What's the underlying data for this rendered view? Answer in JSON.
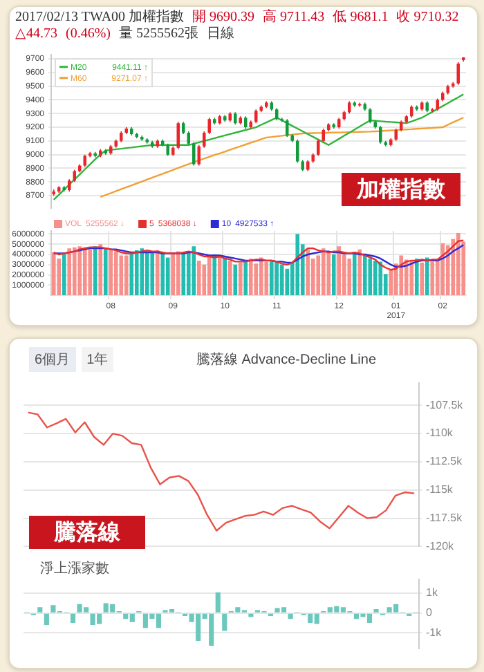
{
  "chart_data": [
    {
      "type": "candlestick",
      "title": "2017/02/13 TWA00 加權指數",
      "categories": [
        null,
        null,
        null,
        null,
        null,
        null,
        null,
        null,
        null,
        null,
        null,
        null,
        null,
        null,
        null,
        null,
        null,
        null,
        null,
        null,
        null,
        null,
        null,
        null,
        null,
        null,
        null,
        null,
        null,
        null,
        null,
        null,
        null,
        null,
        null,
        null,
        null,
        null,
        null,
        null,
        null,
        null,
        null,
        null,
        null,
        null,
        null,
        null,
        null,
        null,
        null,
        null,
        null,
        null,
        null,
        null,
        null,
        null,
        null,
        null,
        null,
        null,
        null,
        null,
        null,
        null,
        null,
        null,
        null,
        null,
        null,
        null,
        null,
        null,
        null,
        null,
        null,
        null,
        null,
        null
      ],
      "ohlc": [
        [
          8710,
          8745,
          8700,
          8730
        ],
        [
          8730,
          8770,
          8720,
          8760
        ],
        [
          8760,
          8770,
          8730,
          8740
        ],
        [
          8740,
          8820,
          8730,
          8810
        ],
        [
          8810,
          8890,
          8800,
          8880
        ],
        [
          8880,
          8930,
          8870,
          8920
        ],
        [
          8920,
          9000,
          8910,
          8990
        ],
        [
          8990,
          9020,
          8980,
          9010
        ],
        [
          9010,
          9020,
          8980,
          8990
        ],
        [
          8990,
          9040,
          8980,
          9030
        ],
        [
          9030,
          9040,
          9000,
          9010
        ],
        [
          9010,
          9070,
          9000,
          9060
        ],
        [
          9060,
          9110,
          9050,
          9100
        ],
        [
          9100,
          9170,
          9090,
          9160
        ],
        [
          9160,
          9200,
          9150,
          9190
        ],
        [
          9190,
          9200,
          9140,
          9150
        ],
        [
          9150,
          9160,
          9120,
          9130
        ],
        [
          9130,
          9140,
          9100,
          9110
        ],
        [
          9110,
          9120,
          9080,
          9090
        ],
        [
          9090,
          9100,
          9050,
          9060
        ],
        [
          9060,
          9110,
          9050,
          9100
        ],
        [
          9100,
          9110,
          9060,
          9070
        ],
        [
          9070,
          9080,
          8990,
          9000
        ],
        [
          9000,
          9060,
          8990,
          9050
        ],
        [
          9050,
          9240,
          9040,
          9230
        ],
        [
          9230,
          9240,
          9150,
          9160
        ],
        [
          9160,
          9170,
          9070,
          9080
        ],
        [
          9080,
          9090,
          8920,
          8930
        ],
        [
          8930,
          9070,
          8920,
          9060
        ],
        [
          9060,
          9170,
          9050,
          9160
        ],
        [
          9160,
          9270,
          9150,
          9260
        ],
        [
          9260,
          9270,
          9220,
          9230
        ],
        [
          9230,
          9290,
          9220,
          9280
        ],
        [
          9280,
          9290,
          9240,
          9250
        ],
        [
          9250,
          9310,
          9240,
          9300
        ],
        [
          9300,
          9310,
          9220,
          9230
        ],
        [
          9230,
          9280,
          9220,
          9270
        ],
        [
          9270,
          9280,
          9190,
          9200
        ],
        [
          9200,
          9250,
          9190,
          9240
        ],
        [
          9240,
          9330,
          9230,
          9320
        ],
        [
          9320,
          9360,
          9310,
          9350
        ],
        [
          9350,
          9390,
          9340,
          9380
        ],
        [
          9380,
          9390,
          9320,
          9330
        ],
        [
          9330,
          9340,
          9250,
          9260
        ],
        [
          9260,
          9270,
          9240,
          9250
        ],
        [
          9250,
          9260,
          9130,
          9140
        ],
        [
          9140,
          9150,
          9090,
          9100
        ],
        [
          9100,
          9110,
          8940,
          8950
        ],
        [
          8950,
          8960,
          8880,
          8890
        ],
        [
          8890,
          8960,
          8880,
          8950
        ],
        [
          8950,
          9010,
          8940,
          9000
        ],
        [
          9000,
          9110,
          8990,
          9100
        ],
        [
          9100,
          9190,
          9090,
          9180
        ],
        [
          9180,
          9230,
          9170,
          9220
        ],
        [
          9220,
          9230,
          9190,
          9200
        ],
        [
          9200,
          9270,
          9190,
          9260
        ],
        [
          9260,
          9320,
          9250,
          9310
        ],
        [
          9310,
          9390,
          9300,
          9380
        ],
        [
          9380,
          9390,
          9350,
          9360
        ],
        [
          9360,
          9380,
          9350,
          9370
        ],
        [
          9370,
          9380,
          9320,
          9330
        ],
        [
          9330,
          9340,
          9230,
          9240
        ],
        [
          9240,
          9250,
          9190,
          9200
        ],
        [
          9200,
          9210,
          9080,
          9090
        ],
        [
          9090,
          9100,
          9060,
          9070
        ],
        [
          9070,
          9120,
          9060,
          9110
        ],
        [
          9110,
          9190,
          9100,
          9180
        ],
        [
          9180,
          9250,
          9170,
          9240
        ],
        [
          9240,
          9290,
          9230,
          9280
        ],
        [
          9280,
          9360,
          9270,
          9350
        ],
        [
          9350,
          9360,
          9320,
          9330
        ],
        [
          9330,
          9390,
          9320,
          9380
        ],
        [
          9380,
          9390,
          9310,
          9320
        ],
        [
          9320,
          9340,
          9310,
          9330
        ],
        [
          9330,
          9410,
          9320,
          9400
        ],
        [
          9400,
          9460,
          9390,
          9450
        ],
        [
          9450,
          9510,
          9440,
          9500
        ],
        [
          9500,
          9530,
          9490,
          9520
        ],
        [
          9520,
          9675,
          9510,
          9665.59
        ],
        [
          9690.39,
          9711.43,
          9681.1,
          9710.32
        ]
      ],
      "series": [
        {
          "type": "line",
          "name": "M20",
          "color": "#2fb53a",
          "values": [
            8670,
            8707,
            8744,
            8781,
            8818,
            8855,
            8892,
            8929,
            8966,
            9000,
            9030,
            9034,
            9039,
            9043,
            9048,
            9052,
            9057,
            9061,
            9066,
            9070,
            9070,
            9070,
            9070,
            9070,
            9070,
            9070,
            9070,
            9080,
            9090,
            9100,
            9110,
            9120,
            9130,
            9140,
            9150,
            9160,
            9170,
            9180,
            9190,
            9200,
            9218,
            9235,
            9253,
            9270,
            9250,
            9230,
            9210,
            9190,
            9170,
            9150,
            9130,
            9110,
            9090,
            9070,
            9093,
            9115,
            9138,
            9160,
            9183,
            9205,
            9228,
            9250,
            9247,
            9244,
            9241,
            9239,
            9236,
            9233,
            9230,
            9243,
            9257,
            9270,
            9291,
            9312,
            9334,
            9355,
            9376,
            9398,
            9419,
            9441
          ]
        },
        {
          "type": "line",
          "name": "M60",
          "color": "#f0a035",
          "values": [
            null,
            null,
            null,
            null,
            null,
            null,
            null,
            null,
            null,
            8690,
            8704,
            8718,
            8733,
            8747,
            8761,
            8775,
            8789,
            8803,
            8818,
            8832,
            8846,
            8860,
            8874,
            8888,
            8903,
            8917,
            8931,
            8945,
            8958,
            8971,
            8984,
            8997,
            9009,
            9022,
            9035,
            9048,
            9061,
            9074,
            9087,
            9099,
            9112,
            9125,
            9129,
            9134,
            9138,
            9142,
            9146,
            9151,
            9155,
            9156,
            9157,
            9158,
            9159,
            9160,
            9161,
            9162,
            9163,
            9164,
            9165,
            9166,
            9167,
            9168,
            9170,
            9172,
            9175,
            9177,
            9179,
            9182,
            9184,
            9186,
            9189,
            9191,
            9193,
            9195,
            9198,
            9200,
            9218,
            9236,
            9253,
            9271
          ]
        }
      ],
      "ylim": [
        8610,
        9730
      ],
      "yticks": [
        8700,
        8800,
        8900,
        9000,
        9100,
        9200,
        9300,
        9400,
        9500,
        9600,
        9700
      ],
      "grid": "y",
      "legend": "top left",
      "annotations": [
        "開 9690.39",
        "高 9711.43",
        "低 9681.1",
        "收 9710.32",
        "△44.73",
        "(0.46%)",
        "量 5255562張",
        "日線",
        "加權指數",
        "9441.11 ↑",
        "9271.07 ↑"
      ]
    },
    {
      "type": "bar",
      "categories": [
        null,
        null,
        null,
        null,
        null,
        null,
        null,
        null,
        null,
        null,
        null,
        "08",
        null,
        null,
        null,
        null,
        null,
        null,
        null,
        null,
        null,
        null,
        null,
        "09",
        null,
        null,
        null,
        null,
        null,
        null,
        null,
        null,
        null,
        "10",
        null,
        null,
        null,
        null,
        null,
        null,
        null,
        null,
        null,
        "11",
        null,
        null,
        null,
        null,
        null,
        null,
        null,
        null,
        null,
        null,
        null,
        "12",
        null,
        null,
        null,
        null,
        null,
        null,
        null,
        null,
        null,
        null,
        "01\n2017",
        null,
        null,
        null,
        null,
        null,
        null,
        null,
        null,
        "02",
        null,
        null,
        null,
        null
      ],
      "series": [
        {
          "type": "bar",
          "name": "VOL",
          "values": [
            4200000,
            3600000,
            4000000,
            4600000,
            4700000,
            4800000,
            4700000,
            4500000,
            4800000,
            5000000,
            4600000,
            4400000,
            4300000,
            3900000,
            3900000,
            4200000,
            4400000,
            4600000,
            4300000,
            4200000,
            4400000,
            4100000,
            3700000,
            4000000,
            4300000,
            4200000,
            4300000,
            4800000,
            3400000,
            3000000,
            3900000,
            4000000,
            3900000,
            3700000,
            3400000,
            3000000,
            3200000,
            3300000,
            3600000,
            3100000,
            3700000,
            3300000,
            3400000,
            3300000,
            3000000,
            2600000,
            3200000,
            6000000,
            5000000,
            4500000,
            3600000,
            3900000,
            4600000,
            4300000,
            4000000,
            4800000,
            4000000,
            3600000,
            4100000,
            4500000,
            4000000,
            3600000,
            3400000,
            3300000,
            2100000,
            2500000,
            3100000,
            3900000,
            3500000,
            3400000,
            3600000,
            3200000,
            3700000,
            3300000,
            3600000,
            5100000,
            4900000,
            5500000,
            6100000,
            5255562
          ],
          "colors": [
            "#f78f8a",
            "#f78f8a",
            "#22bdb0",
            "#f78f8a",
            "#f78f8a",
            "#f78f8a",
            "#f78f8a",
            "#f78f8a",
            "#22bdb0",
            "#f78f8a",
            "#22bdb0",
            "#f78f8a",
            "#f78f8a",
            "#f78f8a",
            "#f78f8a",
            "#22bdb0",
            "#22bdb0",
            "#22bdb0",
            "#22bdb0",
            "#22bdb0",
            "#f78f8a",
            "#22bdb0",
            "#22bdb0",
            "#f78f8a",
            "#f78f8a",
            "#22bdb0",
            "#22bdb0",
            "#22bdb0",
            "#f78f8a",
            "#f78f8a",
            "#f78f8a",
            "#22bdb0",
            "#f78f8a",
            "#22bdb0",
            "#f78f8a",
            "#22bdb0",
            "#f78f8a",
            "#22bdb0",
            "#f78f8a",
            "#f78f8a",
            "#f78f8a",
            "#f78f8a",
            "#22bdb0",
            "#22bdb0",
            "#22bdb0",
            "#22bdb0",
            "#22bdb0",
            "#22bdb0",
            "#22bdb0",
            "#f78f8a",
            "#f78f8a",
            "#f78f8a",
            "#f78f8a",
            "#f78f8a",
            "#22bdb0",
            "#f78f8a",
            "#f78f8a",
            "#f78f8a",
            "#22bdb0",
            "#f78f8a",
            "#22bdb0",
            "#22bdb0",
            "#22bdb0",
            "#22bdb0",
            "#22bdb0",
            "#f78f8a",
            "#f78f8a",
            "#f78f8a",
            "#f78f8a",
            "#f78f8a",
            "#22bdb0",
            "#f78f8a",
            "#22bdb0",
            "#f78f8a",
            "#f78f8a",
            "#f78f8a",
            "#f78f8a",
            "#f78f8a",
            "#f78f8a",
            "#f78f8a"
          ]
        },
        {
          "type": "line",
          "name": "5",
          "color": "#e53030",
          "values": [
            4200000,
            4000000,
            4100000,
            4200000,
            4300000,
            4500000,
            4600000,
            4700000,
            4700000,
            4700000,
            4600000,
            4500000,
            4400000,
            4200000,
            4100000,
            4100000,
            4200000,
            4300000,
            4400000,
            4300000,
            4300000,
            4200000,
            4100000,
            4100000,
            4100000,
            4200000,
            4300000,
            4200000,
            4000000,
            3800000,
            3800000,
            3700000,
            3800000,
            3600000,
            3500000,
            3300000,
            3300000,
            3300000,
            3400000,
            3500000,
            3500000,
            3400000,
            3400000,
            3300000,
            3100000,
            3000000,
            3200000,
            3700000,
            4200000,
            4600000,
            4600000,
            4400000,
            4300000,
            4200000,
            4300000,
            4300000,
            4200000,
            4100000,
            4200000,
            4100000,
            3900000,
            3700000,
            3500000,
            3000000,
            2700000,
            2500000,
            2600000,
            3000000,
            3300000,
            3400000,
            3400000,
            3500000,
            3400000,
            3500000,
            3500000,
            3900000,
            4300000,
            4800000,
            5300000,
            5368038
          ]
        },
        {
          "type": "line",
          "name": "10",
          "color": "#2b2bd6",
          "values": [
            4100000,
            4100000,
            4100000,
            4200000,
            4300000,
            4400000,
            4500000,
            4600000,
            4600000,
            4600000,
            4600000,
            4500000,
            4500000,
            4400000,
            4300000,
            4200000,
            4200000,
            4200000,
            4200000,
            4200000,
            4200000,
            4100000,
            4100000,
            4100000,
            4100000,
            4100000,
            4200000,
            4200000,
            4100000,
            4000000,
            3900000,
            3900000,
            3900000,
            3800000,
            3700000,
            3600000,
            3500000,
            3400000,
            3400000,
            3400000,
            3400000,
            3400000,
            3400000,
            3300000,
            3300000,
            3200000,
            3200000,
            3500000,
            3800000,
            4000000,
            4100000,
            4200000,
            4300000,
            4300000,
            4200000,
            4200000,
            4100000,
            4100000,
            4100000,
            4000000,
            4000000,
            3900000,
            3800000,
            3600000,
            3300000,
            3000000,
            2800000,
            2800000,
            2900000,
            3100000,
            3300000,
            3400000,
            3400000,
            3400000,
            3400000,
            3600000,
            3900000,
            4300000,
            4600000,
            4927533
          ]
        }
      ],
      "ylim": [
        0,
        6300000
      ],
      "yticks": [
        1000000,
        2000000,
        3000000,
        4000000,
        5000000,
        6000000
      ],
      "grid": true,
      "legend": "top left",
      "annotations": [
        "5255562 ↓",
        "5368038 ↓",
        "4927533 ↑"
      ]
    },
    {
      "type": "line",
      "title": "騰落線 Advance-Decline Line",
      "categories": [
        null,
        null,
        null,
        null,
        null,
        null,
        null,
        null,
        null,
        null,
        null,
        null,
        null,
        null,
        null,
        null,
        null,
        null,
        null,
        null,
        null,
        null,
        null,
        null,
        null,
        null,
        null,
        null,
        null,
        null,
        null,
        null,
        null,
        null,
        null,
        null,
        null,
        null,
        null,
        null,
        null,
        null
      ],
      "series": [
        {
          "color": "#e8534a",
          "values": [
            -108130,
            -108300,
            -109460,
            -109100,
            -108700,
            -109900,
            -109000,
            -110300,
            -111000,
            -110000,
            -110200,
            -110850,
            -111000,
            -113000,
            -114500,
            -113900,
            -113750,
            -114200,
            -115400,
            -117200,
            -118600,
            -117900,
            -117600,
            -117300,
            -117200,
            -116900,
            -117200,
            -116600,
            -116400,
            -116700,
            -117000,
            -117800,
            -118400,
            -117400,
            -116400,
            -117000,
            -117500,
            -117400,
            -116800,
            -115500,
            -115200,
            -115300
          ]
        }
      ],
      "ylim": [
        -120000,
        -105500
      ],
      "yticks": [
        {
          "value": -107500,
          "label": "-107.5k"
        },
        {
          "value": -110000,
          "label": "-110k"
        },
        {
          "value": -112500,
          "label": "-112.5k"
        },
        {
          "value": -115000,
          "label": "-115k"
        },
        {
          "value": -117500,
          "label": "-117.5k"
        },
        {
          "value": -120000,
          "label": "-120k"
        }
      ],
      "grid": "y",
      "annotations": [
        "6個月",
        "1年",
        "騰落線"
      ]
    },
    {
      "type": "bar",
      "title": "淨上漲家數",
      "categories": [
        null,
        null,
        null,
        null,
        null,
        null,
        null,
        null,
        null,
        null,
        null,
        null,
        null,
        null,
        null,
        null,
        null,
        null,
        null,
        null,
        null,
        null,
        null,
        null,
        null,
        null,
        null,
        null,
        null,
        null,
        null,
        null,
        null,
        null,
        null,
        null,
        null,
        null,
        null,
        null,
        null,
        null,
        null,
        null,
        null,
        null,
        null,
        null,
        null,
        null,
        null,
        null,
        null,
        null,
        null,
        null,
        null,
        null,
        null,
        null
      ],
      "values": [
        50,
        -100,
        300,
        -600,
        400,
        100,
        50,
        -500,
        450,
        300,
        -600,
        -550,
        500,
        450,
        100,
        -300,
        -450,
        100,
        -750,
        -300,
        -750,
        150,
        200,
        50,
        -150,
        -450,
        -1400,
        -300,
        -1650,
        1050,
        -900,
        100,
        300,
        150,
        -200,
        150,
        100,
        -150,
        250,
        300,
        -300,
        50,
        -100,
        -500,
        -550,
        100,
        300,
        350,
        300,
        100,
        -300,
        -200,
        -500,
        200,
        -100,
        300,
        450,
        50,
        -150,
        50
      ],
      "color": "#6cc7bd",
      "ylim": [
        -1800,
        1700
      ],
      "yticks": [
        {
          "value": 1000,
          "label": "1k"
        },
        0,
        {
          "value": -1000,
          "label": "-1k"
        }
      ],
      "grid": "y"
    }
  ]
}
